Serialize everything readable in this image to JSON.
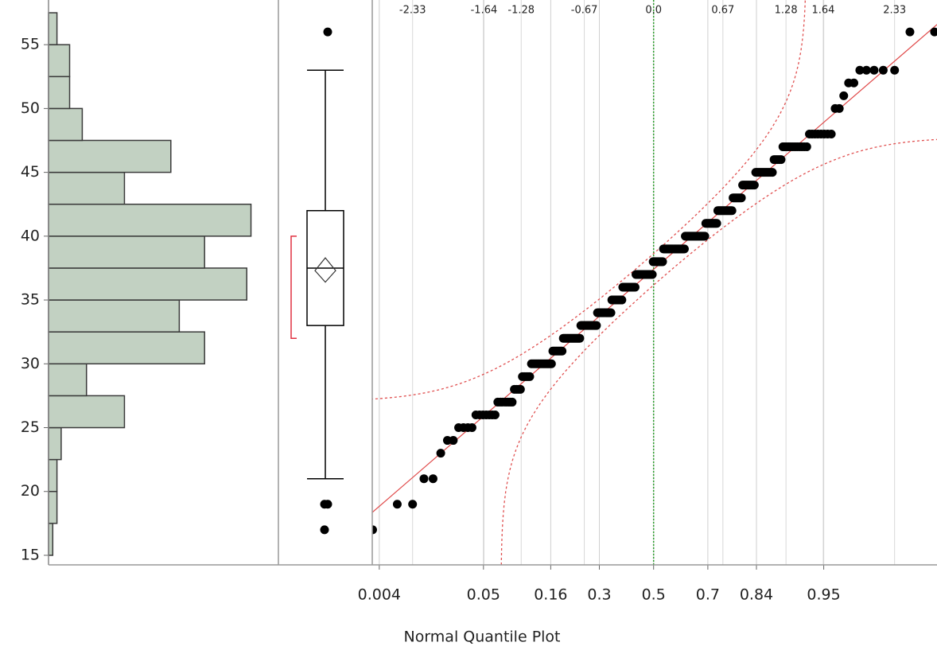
{
  "chart_data": [
    {
      "type": "histogram",
      "orientation": "horizontal",
      "bins": [
        15,
        17.5,
        20,
        22.5,
        25,
        27.5,
        30,
        32.5,
        35,
        37.5,
        40,
        42.5,
        45,
        47.5,
        50,
        52.5,
        55,
        57.5
      ],
      "counts": [
        1,
        2,
        2,
        3,
        18,
        9,
        37,
        31,
        47,
        37,
        48,
        18,
        29,
        8,
        5,
        5,
        2
      ],
      "color": "#c2d1c2",
      "xlim": [
        0,
        54.5
      ],
      "ylim": [
        14.25,
        58.5
      ],
      "yticks": [
        15,
        20,
        25,
        30,
        35,
        40,
        45,
        50,
        55
      ]
    },
    {
      "type": "boxplot",
      "whisker_low": 21,
      "q1": 33,
      "median": 37.5,
      "q3": 42,
      "whisker_high": 53,
      "outliers": [
        17,
        19,
        19,
        56
      ],
      "mean": 37.3,
      "mean_ci": [
        36.4,
        38.3
      ],
      "shortest_half": [
        32,
        40
      ],
      "ylim": [
        14.25,
        58.5
      ]
    },
    {
      "type": "normal_quantile",
      "xlabel": "Normal Quantile Plot",
      "values": [
        17,
        19,
        19,
        21,
        21,
        23,
        24,
        24,
        25,
        25,
        25,
        25,
        26,
        26,
        26,
        26,
        26,
        26,
        26,
        27,
        27,
        27,
        27,
        27,
        27,
        27,
        28,
        28,
        28,
        28,
        29,
        29,
        29,
        29,
        29,
        30,
        30,
        30,
        30,
        30,
        30,
        30,
        30,
        30,
        30,
        30,
        30,
        30,
        30,
        31,
        31,
        31,
        31,
        31,
        31,
        31,
        31,
        32,
        32,
        32,
        32,
        32,
        32,
        32,
        32,
        32,
        32,
        32,
        32,
        32,
        32,
        32,
        33,
        33,
        33,
        33,
        33,
        33,
        33,
        33,
        33,
        33,
        33,
        33,
        33,
        33,
        33,
        33,
        34,
        34,
        34,
        34,
        34,
        34,
        34,
        34,
        34,
        34,
        34,
        34,
        34,
        34,
        34,
        35,
        35,
        35,
        35,
        35,
        35,
        35,
        35,
        35,
        35,
        35,
        35,
        36,
        36,
        36,
        36,
        36,
        36,
        36,
        36,
        36,
        36,
        36,
        36,
        36,
        36,
        36,
        37,
        37,
        37,
        37,
        37,
        37,
        37,
        37,
        37,
        37,
        37,
        37,
        37,
        37,
        37,
        37,
        37,
        37,
        37,
        37,
        38,
        38,
        38,
        38,
        38,
        38,
        38,
        38,
        38,
        38,
        38,
        38,
        39,
        39,
        39,
        39,
        39,
        39,
        39,
        39,
        39,
        39,
        39,
        39,
        39,
        39,
        39,
        39,
        39,
        39,
        39,
        39,
        39,
        39,
        39,
        39,
        39,
        40,
        40,
        40,
        40,
        40,
        40,
        40,
        40,
        40,
        40,
        40,
        40,
        40,
        40,
        40,
        40,
        40,
        40,
        40,
        40,
        40,
        40,
        41,
        41,
        41,
        41,
        41,
        41,
        41,
        41,
        41,
        41,
        41,
        41,
        42,
        42,
        42,
        42,
        42,
        42,
        42,
        42,
        42,
        42,
        42,
        42,
        42,
        42,
        43,
        43,
        43,
        43,
        43,
        43,
        43,
        43,
        44,
        44,
        44,
        44,
        44,
        44,
        44,
        44,
        44,
        44,
        45,
        45,
        45,
        45,
        45,
        45,
        45,
        45,
        45,
        45,
        45,
        45,
        46,
        46,
        46,
        46,
        46,
        47,
        47,
        47,
        47,
        47,
        47,
        47,
        47,
        47,
        47,
        47,
        47,
        48,
        48,
        48,
        48,
        48,
        48,
        48,
        48,
        50,
        50,
        51,
        52,
        52,
        53,
        53,
        53,
        53,
        53,
        56,
        56
      ],
      "fit": {
        "mean": 37.4,
        "sd": 7.0
      },
      "band_d": 0.07,
      "xlim": [
        -2.72,
        2.74
      ],
      "ylim": [
        14.25,
        58.5
      ],
      "xticks": [
        -2.33,
        -1.64,
        -1.28,
        -0.67,
        {
          "value": 0,
          "label": "0.0"
        },
        0.67,
        1.28,
        1.64,
        2.33
      ],
      "prob_ticks": [
        0.004,
        0.05,
        0.16,
        0.3,
        0.5,
        0.7,
        0.84,
        0.95
      ]
    }
  ]
}
